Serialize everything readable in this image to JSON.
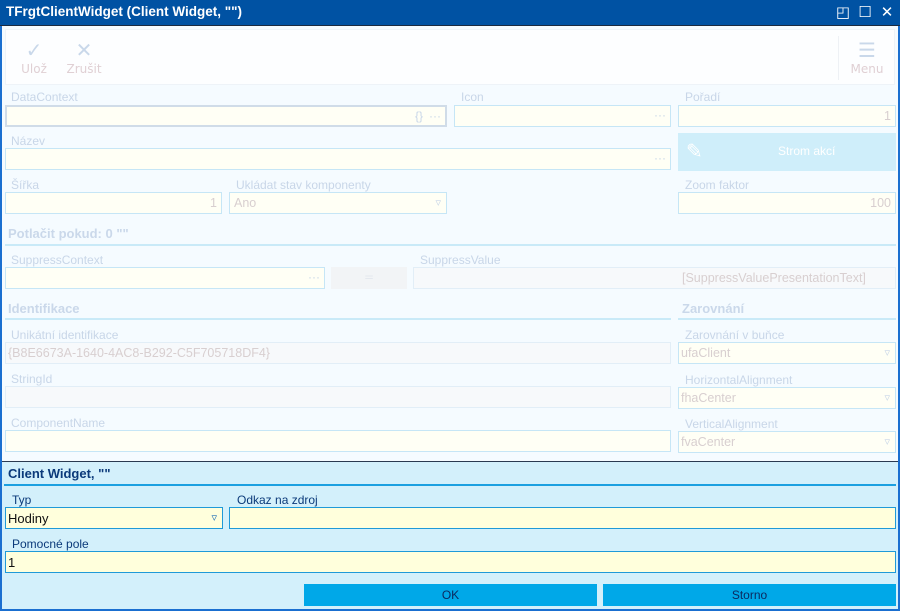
{
  "window": {
    "title": "TFrgtClientWidget (Client Widget, \"\")",
    "buttons": {
      "restore": "restore-icon",
      "maximize": "maximize-icon",
      "close": "close-icon"
    }
  },
  "toolbar": {
    "save": "Ulož",
    "cancel": "Zrušit",
    "menu": "Menu"
  },
  "form": {
    "datacontext": {
      "label": "DataContext",
      "value": "",
      "suffix": "{}"
    },
    "icon": {
      "label": "Icon",
      "value": ""
    },
    "poradi": {
      "label": "Pořadí",
      "value": "1"
    },
    "nazev": {
      "label": "Název",
      "value": ""
    },
    "strom_akci": "Strom akcí",
    "sirka": {
      "label": "Šířka",
      "value": "1"
    },
    "ukladat": {
      "label": "Ukládat stav komponenty",
      "value": "Ano"
    },
    "zoom": {
      "label": "Zoom faktor",
      "value": "100"
    },
    "potlacit_heading": "Potlačit pokud:  0 \"\"",
    "suppress_context": {
      "label": "SuppressContext",
      "value": ""
    },
    "suppress_value": {
      "label": "SuppressValue",
      "value": "[SuppressValuePresentationText]"
    },
    "identifikace_heading": "Identifikace",
    "zarovnani_heading": "Zarovnání",
    "unikatni": {
      "label": "Unikátní identifikace",
      "value": "{B8E6673A-1640-4AC8-B292-C5F705718DF4}"
    },
    "stringid": {
      "label": "StringId",
      "value": ""
    },
    "componentname": {
      "label": "ComponentName",
      "value": ""
    },
    "zarovnani_bunce": {
      "label": "Zarovnání v buňce",
      "value": "ufaClient"
    },
    "horizontal": {
      "label": "HorizontalAlignment",
      "value": "fhaCenter"
    },
    "vertical": {
      "label": "VerticalAlignment",
      "value": "fvaCenter"
    }
  },
  "dialog": {
    "heading": "Client Widget, \"\"",
    "typ": {
      "label": "Typ",
      "value": "Hodiny"
    },
    "odkaz": {
      "label": "Odkaz na zdroj",
      "value": ""
    },
    "pomocne": {
      "label": "Pomocné pole",
      "value": "1"
    },
    "ok": "OK",
    "storno": "Storno"
  },
  "colors": {
    "titlebar": "#0052a3",
    "accent": "#00a8e8",
    "panel": "#d3f0fb"
  }
}
